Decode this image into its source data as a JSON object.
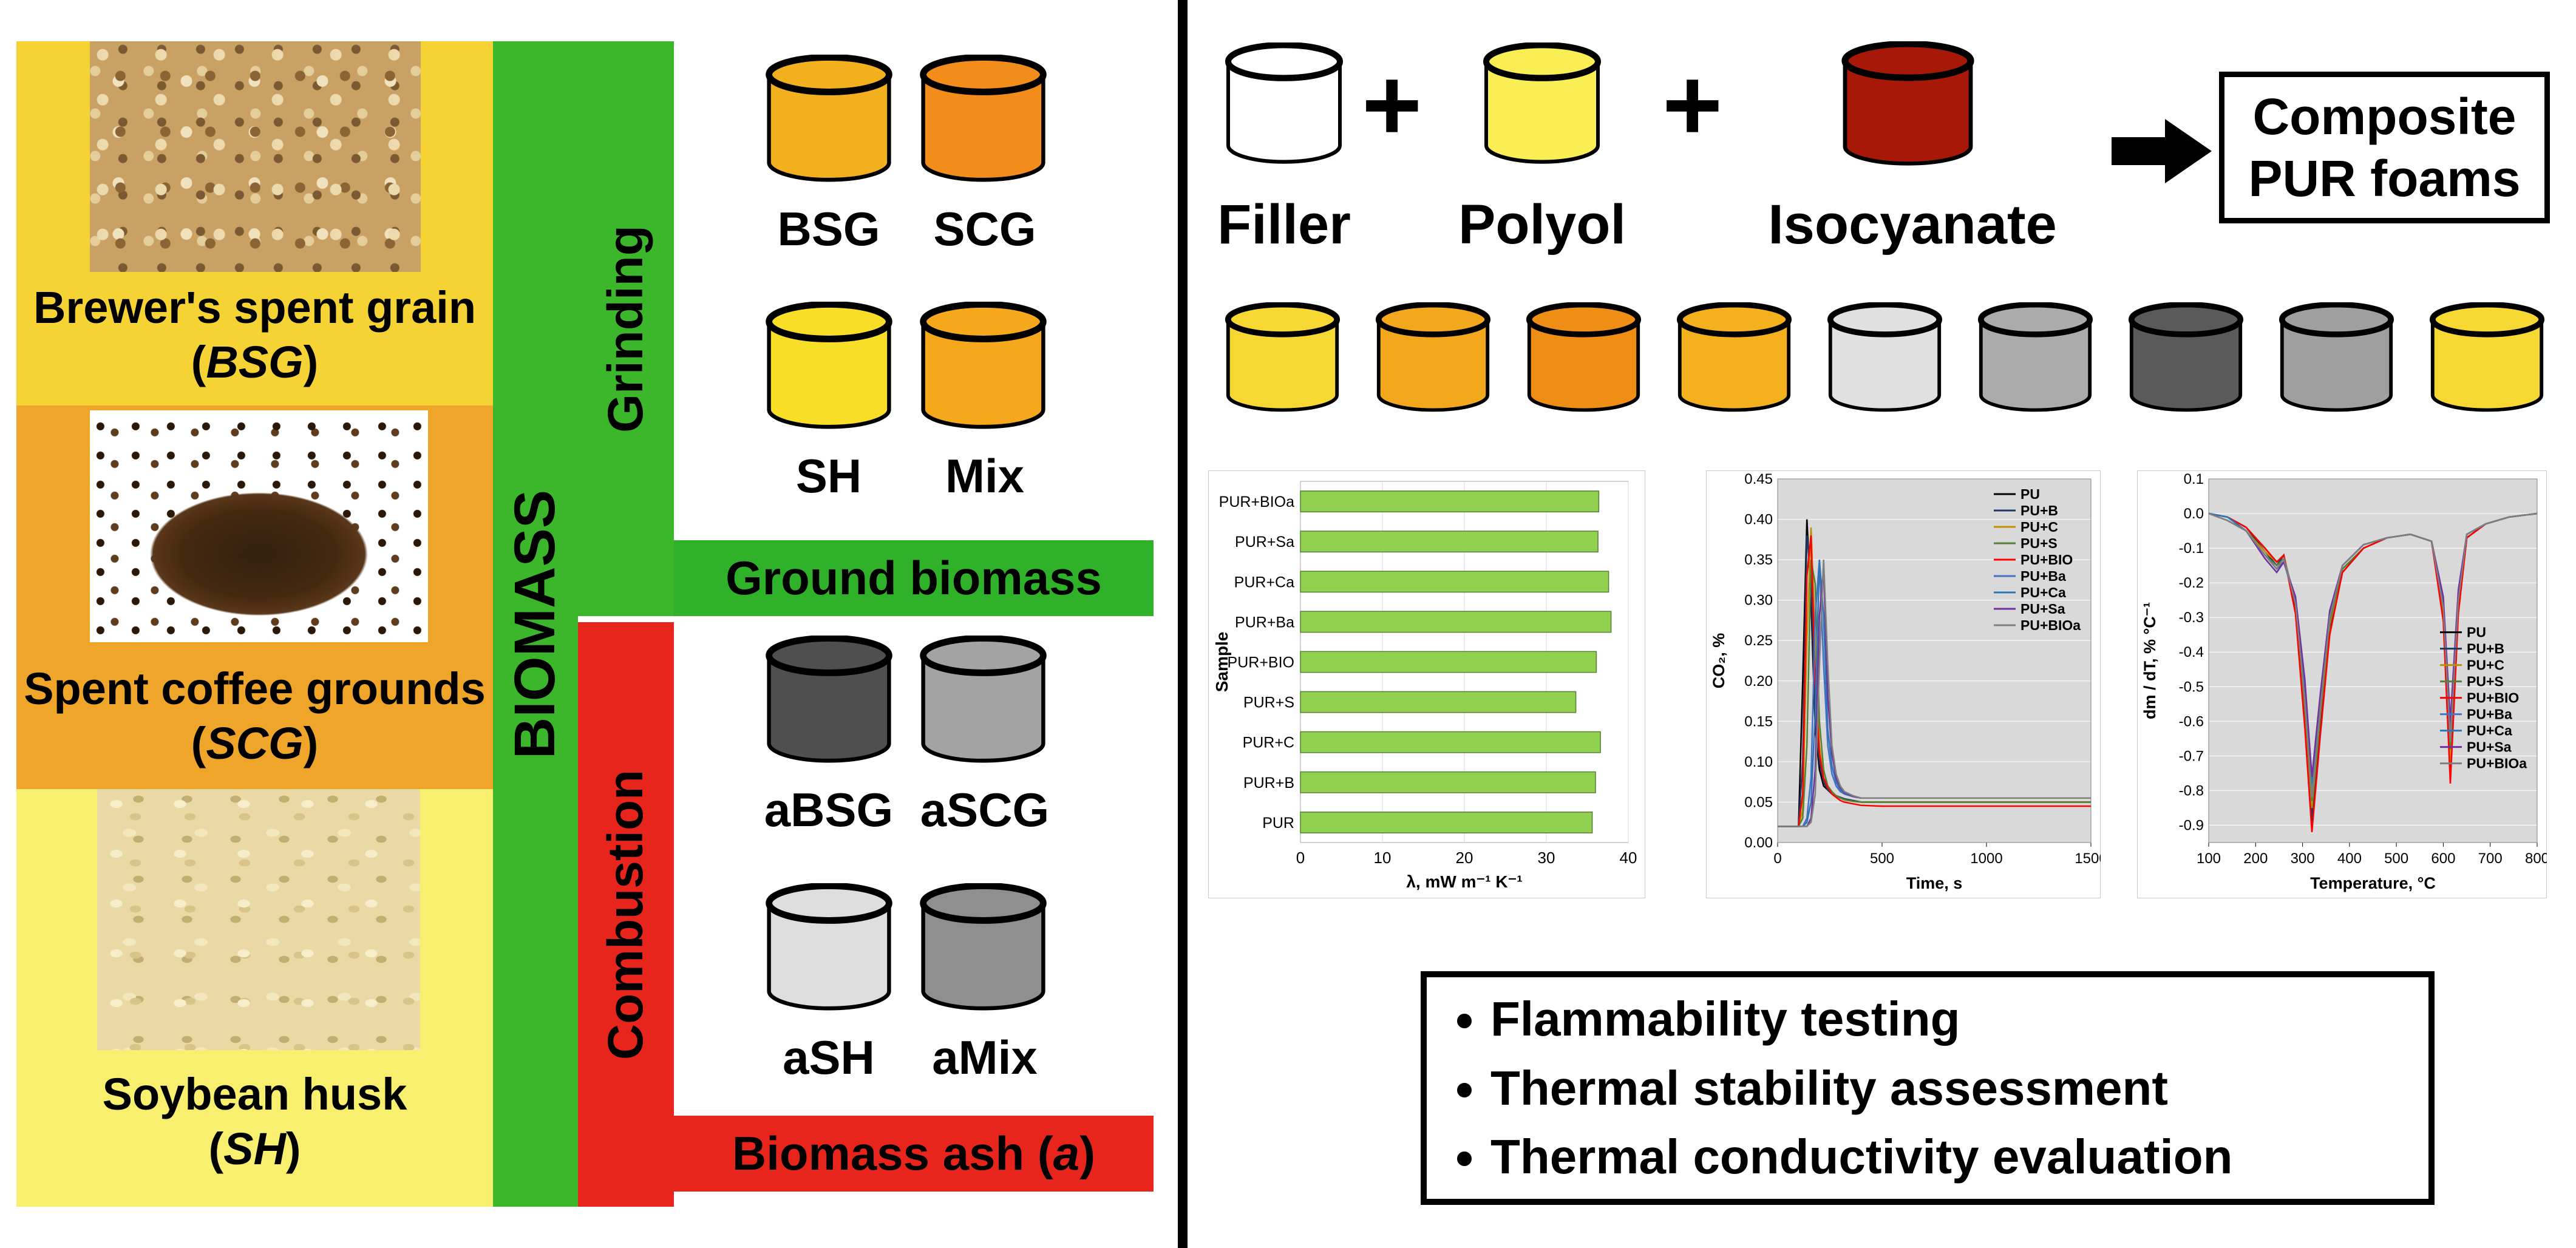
{
  "left": {
    "biomass_items": [
      {
        "pre": "Brewer's spent grain (",
        "abbr": "BSG",
        "post": ")"
      },
      {
        "pre": "Spent coffee grounds (",
        "abbr": "SCG",
        "post": ")"
      },
      {
        "pre": "Soybean husk (",
        "abbr": "SH",
        "post": ")"
      }
    ],
    "biomass_bar": "BIOMASS",
    "grinding": "Grinding",
    "combustion": "Combustion",
    "ground_cylinders": [
      {
        "label": "BSG",
        "color": "#F2B01E"
      },
      {
        "label": "SCG",
        "color": "#F28C1B"
      },
      {
        "label": "SH",
        "color": "#F8DE27"
      },
      {
        "label": "Mix",
        "color": "#F5A81C"
      }
    ],
    "ground_banner": "Ground biomass",
    "ash_cylinders": [
      {
        "label": "aBSG",
        "color": "#4F4F4F"
      },
      {
        "label": "aSCG",
        "color": "#A3A3A3"
      },
      {
        "label": "aSH",
        "color": "#DEDEDE"
      },
      {
        "label": "aMix",
        "color": "#8F8F8F"
      }
    ],
    "ash_banner": {
      "pre": "Biomass ash (",
      "abbr": "a",
      "post": ")"
    },
    "colors": {
      "green": "#3CB72C",
      "red": "#E8251C",
      "yellow_top": "#F5D335",
      "orange_mid": "#EFA42A",
      "yellow_bottom": "#F8EF6F"
    }
  },
  "right": {
    "ingredients": [
      {
        "label": "Filler",
        "color": "#FFFFFF"
      },
      {
        "label": "Polyol",
        "color": "#F9EE54"
      },
      {
        "label": "Isocyanate",
        "color": "#A81808"
      }
    ],
    "plus": "+",
    "result": {
      "line1": "Composite",
      "line2": "PUR foams"
    },
    "foam_colors": [
      "#F7D832",
      "#F2A71D",
      "#EF8E14",
      "#F5B01E",
      "#E0E0E0",
      "#ABABAB",
      "#5A5A5A",
      "#9F9F9F",
      "#F7D832"
    ],
    "bullets": [
      "Flammability testing",
      "Thermal stability assessment",
      "Thermal conductivity evaluation"
    ]
  },
  "chart_data": [
    {
      "type": "bar",
      "title": "",
      "categories": [
        "PUR+BIOa",
        "PUR+Sa",
        "PUR+Ca",
        "PUR+Ba",
        "PUR+BIO",
        "PUR+S",
        "PUR+C",
        "PUR+B",
        "PUR"
      ],
      "values": [
        36.4,
        36.3,
        37.6,
        37.9,
        36.1,
        33.6,
        36.6,
        36.0,
        35.6
      ],
      "xlabel": "λ, mW m⁻¹ K⁻¹",
      "ylabel": "Sample",
      "xlim": [
        0,
        40
      ],
      "xticks": [
        0,
        10,
        20,
        30,
        40
      ],
      "bar_color": "#92D050",
      "bar_border": "#538135",
      "grid": true,
      "legend_position": "none"
    },
    {
      "type": "line",
      "title": "",
      "xlabel": "Time, s",
      "ylabel": "CO₂, %",
      "xlim": [
        0,
        1500
      ],
      "ylim": [
        0,
        0.45
      ],
      "xticks": [
        0,
        500,
        1000,
        1500
      ],
      "yticks": [
        0,
        0.05,
        0.1,
        0.15,
        0.2,
        0.25,
        0.3,
        0.35,
        0.4,
        0.45
      ],
      "ydec": 2,
      "plot_bg": "#D9D9D9",
      "grid": true,
      "legend": "tr",
      "x": [
        0,
        100,
        120,
        140,
        160,
        180,
        200,
        220,
        240,
        260,
        280,
        300,
        320,
        360,
        400,
        500,
        750,
        1000,
        1250,
        1500
      ],
      "series": [
        {
          "name": "PU",
          "color": "#000000",
          "y": [
            0.02,
            0.02,
            0.2,
            0.4,
            0.3,
            0.14,
            0.09,
            0.07,
            0.065,
            0.06,
            0.058,
            0.055,
            0.054,
            0.052,
            0.05,
            0.05,
            0.05,
            0.05,
            0.05,
            0.05
          ]
        },
        {
          "name": "PU+B",
          "color": "#1F3864",
          "y": [
            0.02,
            0.02,
            0.1,
            0.38,
            0.33,
            0.16,
            0.1,
            0.075,
            0.065,
            0.06,
            0.058,
            0.056,
            0.054,
            0.052,
            0.05,
            0.05,
            0.05,
            0.05,
            0.05,
            0.05
          ]
        },
        {
          "name": "PU+C",
          "color": "#BF8F00",
          "y": [
            0.02,
            0.02,
            0.04,
            0.25,
            0.39,
            0.25,
            0.12,
            0.08,
            0.07,
            0.062,
            0.058,
            0.055,
            0.053,
            0.051,
            0.05,
            0.05,
            0.05,
            0.05,
            0.05,
            0.05
          ]
        },
        {
          "name": "PU+S",
          "color": "#538135",
          "y": [
            0.02,
            0.02,
            0.03,
            0.12,
            0.35,
            0.32,
            0.15,
            0.09,
            0.07,
            0.063,
            0.058,
            0.055,
            0.053,
            0.051,
            0.05,
            0.05,
            0.05,
            0.05,
            0.05,
            0.05
          ]
        },
        {
          "name": "PU+BIO",
          "color": "#FF0000",
          "y": [
            0.02,
            0.02,
            0.06,
            0.33,
            0.38,
            0.2,
            0.11,
            0.08,
            0.068,
            0.06,
            0.056,
            0.052,
            0.05,
            0.048,
            0.046,
            0.045,
            0.045,
            0.045,
            0.045,
            0.045
          ]
        },
        {
          "name": "PU+Ba",
          "color": "#4472C4",
          "y": [
            0.02,
            0.02,
            0.02,
            0.03,
            0.08,
            0.28,
            0.35,
            0.22,
            0.12,
            0.085,
            0.07,
            0.063,
            0.06,
            0.057,
            0.055,
            0.055,
            0.055,
            0.055,
            0.055,
            0.055
          ]
        },
        {
          "name": "PU+Ca",
          "color": "#2E75B6",
          "y": [
            0.02,
            0.02,
            0.02,
            0.025,
            0.05,
            0.16,
            0.35,
            0.28,
            0.14,
            0.095,
            0.075,
            0.065,
            0.06,
            0.057,
            0.055,
            0.055,
            0.055,
            0.055,
            0.055,
            0.055
          ]
        },
        {
          "name": "PU+Sa",
          "color": "#7030A0",
          "y": [
            0.02,
            0.02,
            0.02,
            0.02,
            0.03,
            0.09,
            0.28,
            0.34,
            0.18,
            0.11,
            0.08,
            0.068,
            0.062,
            0.057,
            0.055,
            0.055,
            0.055,
            0.055,
            0.055,
            0.055
          ]
        },
        {
          "name": "PU+BIOa",
          "color": "#7F7F7F",
          "y": [
            0.02,
            0.02,
            0.02,
            0.02,
            0.025,
            0.06,
            0.22,
            0.35,
            0.22,
            0.12,
            0.085,
            0.07,
            0.063,
            0.058,
            0.055,
            0.055,
            0.055,
            0.055,
            0.055,
            0.055
          ]
        }
      ]
    },
    {
      "type": "line",
      "title": "",
      "xlabel": "Temperature, °C",
      "ylabel": "dm / dT, % °C⁻¹",
      "xlim": [
        100,
        800
      ],
      "ylim": [
        -0.95,
        0.1
      ],
      "xticks": [
        100,
        200,
        300,
        400,
        500,
        600,
        700,
        800
      ],
      "yticks": [
        0.1,
        0,
        -0.1,
        -0.2,
        -0.3,
        -0.4,
        -0.5,
        -0.6,
        -0.7,
        -0.8,
        -0.9
      ],
      "ydec": 1,
      "plot_bg": "#D9D9D9",
      "grid": true,
      "legend": "mr",
      "x": [
        100,
        140,
        180,
        220,
        245,
        260,
        285,
        305,
        320,
        338,
        358,
        385,
        430,
        480,
        530,
        575,
        600,
        615,
        632,
        650,
        690,
        740,
        800
      ],
      "series": [
        {
          "name": "PU",
          "color": "#000000",
          "y": [
            0,
            -0.01,
            -0.04,
            -0.1,
            -0.14,
            -0.12,
            -0.28,
            -0.6,
            -0.9,
            -0.62,
            -0.34,
            -0.17,
            -0.1,
            -0.07,
            -0.06,
            -0.08,
            -0.3,
            -0.75,
            -0.28,
            -0.07,
            -0.03,
            -0.01,
            0
          ]
        },
        {
          "name": "PU+B",
          "color": "#1F3864",
          "y": [
            0,
            -0.01,
            -0.04,
            -0.11,
            -0.15,
            -0.12,
            -0.27,
            -0.58,
            -0.88,
            -0.6,
            -0.33,
            -0.16,
            -0.1,
            -0.07,
            -0.06,
            -0.08,
            -0.29,
            -0.7,
            -0.27,
            -0.07,
            -0.03,
            -0.01,
            0
          ]
        },
        {
          "name": "PU+C",
          "color": "#BF8F00",
          "y": [
            0,
            -0.01,
            -0.05,
            -0.11,
            -0.14,
            -0.12,
            -0.26,
            -0.56,
            -0.85,
            -0.58,
            -0.32,
            -0.16,
            -0.1,
            -0.07,
            -0.06,
            -0.08,
            -0.28,
            -0.72,
            -0.26,
            -0.06,
            -0.03,
            -0.01,
            0
          ]
        },
        {
          "name": "PU+S",
          "color": "#538135",
          "y": [
            0,
            -0.01,
            -0.05,
            -0.12,
            -0.15,
            -0.13,
            -0.26,
            -0.55,
            -0.83,
            -0.57,
            -0.31,
            -0.16,
            -0.1,
            -0.07,
            -0.06,
            -0.08,
            -0.27,
            -0.68,
            -0.25,
            -0.06,
            -0.03,
            -0.01,
            0
          ]
        },
        {
          "name": "PU+BIO",
          "color": "#FF0000",
          "y": [
            0,
            -0.01,
            -0.04,
            -0.1,
            -0.14,
            -0.12,
            -0.29,
            -0.62,
            -0.92,
            -0.64,
            -0.35,
            -0.17,
            -0.1,
            -0.07,
            -0.06,
            -0.08,
            -0.31,
            -0.78,
            -0.29,
            -0.07,
            -0.03,
            -0.01,
            0
          ]
        },
        {
          "name": "PU+Ba",
          "color": "#4472C4",
          "y": [
            0,
            -0.01,
            -0.05,
            -0.12,
            -0.16,
            -0.13,
            -0.25,
            -0.52,
            -0.8,
            -0.55,
            -0.3,
            -0.15,
            -0.09,
            -0.07,
            -0.06,
            -0.08,
            -0.26,
            -0.65,
            -0.24,
            -0.06,
            -0.03,
            -0.01,
            0
          ]
        },
        {
          "name": "PU+Ca",
          "color": "#2E75B6",
          "y": [
            0,
            -0.01,
            -0.05,
            -0.12,
            -0.16,
            -0.14,
            -0.25,
            -0.5,
            -0.78,
            -0.53,
            -0.29,
            -0.15,
            -0.09,
            -0.07,
            -0.06,
            -0.08,
            -0.25,
            -0.62,
            -0.23,
            -0.06,
            -0.03,
            -0.01,
            0
          ]
        },
        {
          "name": "PU+Sa",
          "color": "#7030A0",
          "y": [
            0,
            -0.02,
            -0.05,
            -0.13,
            -0.17,
            -0.14,
            -0.24,
            -0.48,
            -0.76,
            -0.52,
            -0.28,
            -0.15,
            -0.09,
            -0.07,
            -0.06,
            -0.08,
            -0.24,
            -0.6,
            -0.22,
            -0.06,
            -0.03,
            -0.01,
            0
          ]
        },
        {
          "name": "PU+BIOa",
          "color": "#7F7F7F",
          "y": [
            0,
            -0.02,
            -0.05,
            -0.12,
            -0.16,
            -0.13,
            -0.26,
            -0.54,
            -0.82,
            -0.56,
            -0.3,
            -0.15,
            -0.09,
            -0.07,
            -0.06,
            -0.08,
            -0.27,
            -0.66,
            -0.25,
            -0.06,
            -0.03,
            -0.01,
            0
          ]
        }
      ]
    }
  ]
}
